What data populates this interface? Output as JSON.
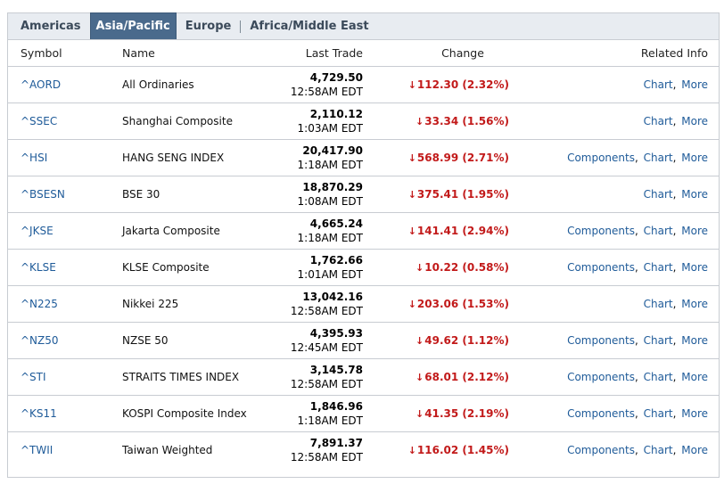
{
  "tabs": [
    {
      "label": "Americas",
      "active": false
    },
    {
      "label": "Asia/Pacific",
      "active": true
    },
    {
      "label": "Europe",
      "active": false
    },
    {
      "label": "Africa/Middle East",
      "active": false
    }
  ],
  "headers": {
    "symbol": "Symbol",
    "name": "Name",
    "last_trade": "Last Trade",
    "change": "Change",
    "related": "Related Info"
  },
  "colors": {
    "down": "#c21a1a",
    "link": "#1f5b99",
    "active_tab": "#4a6a8c"
  },
  "rows": [
    {
      "symbol": "^AORD",
      "name": "All Ordinaries",
      "value": "4,729.50",
      "time": "12:58AM EDT",
      "change": "112.30 (2.32%)",
      "direction": "down",
      "components": "",
      "chart": "Chart",
      "more": "More"
    },
    {
      "symbol": "^SSEC",
      "name": "Shanghai Composite",
      "value": "2,110.12",
      "time": "1:03AM EDT",
      "change": "33.34 (1.56%)",
      "direction": "down",
      "components": "",
      "chart": "Chart",
      "more": "More"
    },
    {
      "symbol": "^HSI",
      "name": "HANG SENG INDEX",
      "value": "20,417.90",
      "time": "1:18AM EDT",
      "change": "568.99 (2.71%)",
      "direction": "down",
      "components": "Components",
      "chart": "Chart",
      "more": "More"
    },
    {
      "symbol": "^BSESN",
      "name": "BSE 30",
      "value": "18,870.29",
      "time": "1:08AM EDT",
      "change": "375.41 (1.95%)",
      "direction": "down",
      "components": "",
      "chart": "Chart",
      "more": "More"
    },
    {
      "symbol": "^JKSE",
      "name": "Jakarta Composite",
      "value": "4,665.24",
      "time": "1:18AM EDT",
      "change": "141.41 (2.94%)",
      "direction": "down",
      "components": "Components",
      "chart": "Chart",
      "more": "More"
    },
    {
      "symbol": "^KLSE",
      "name": "KLSE Composite",
      "value": "1,762.66",
      "time": "1:01AM EDT",
      "change": "10.22 (0.58%)",
      "direction": "down",
      "components": "Components",
      "chart": "Chart",
      "more": "More"
    },
    {
      "symbol": "^N225",
      "name": "Nikkei 225",
      "value": "13,042.16",
      "time": "12:58AM EDT",
      "change": "203.06 (1.53%)",
      "direction": "down",
      "components": "",
      "chart": "Chart",
      "more": "More"
    },
    {
      "symbol": "^NZ50",
      "name": "NZSE 50",
      "value": "4,395.93",
      "time": "12:45AM EDT",
      "change": "49.62 (1.12%)",
      "direction": "down",
      "components": "Components",
      "chart": "Chart",
      "more": "More"
    },
    {
      "symbol": "^STI",
      "name": "STRAITS TIMES INDEX",
      "value": "3,145.78",
      "time": "12:58AM EDT",
      "change": "68.01 (2.12%)",
      "direction": "down",
      "components": "Components",
      "chart": "Chart",
      "more": "More"
    },
    {
      "symbol": "^KS11",
      "name": "KOSPI Composite Index",
      "value": "1,846.96",
      "time": "1:18AM EDT",
      "change": "41.35 (2.19%)",
      "direction": "down",
      "components": "Components",
      "chart": "Chart",
      "more": "More"
    },
    {
      "symbol": "^TWII",
      "name": "Taiwan Weighted",
      "value": "7,891.37",
      "time": "12:58AM EDT",
      "change": "116.02 (1.45%)",
      "direction": "down",
      "components": "Components",
      "chart": "Chart",
      "more": "More"
    }
  ]
}
